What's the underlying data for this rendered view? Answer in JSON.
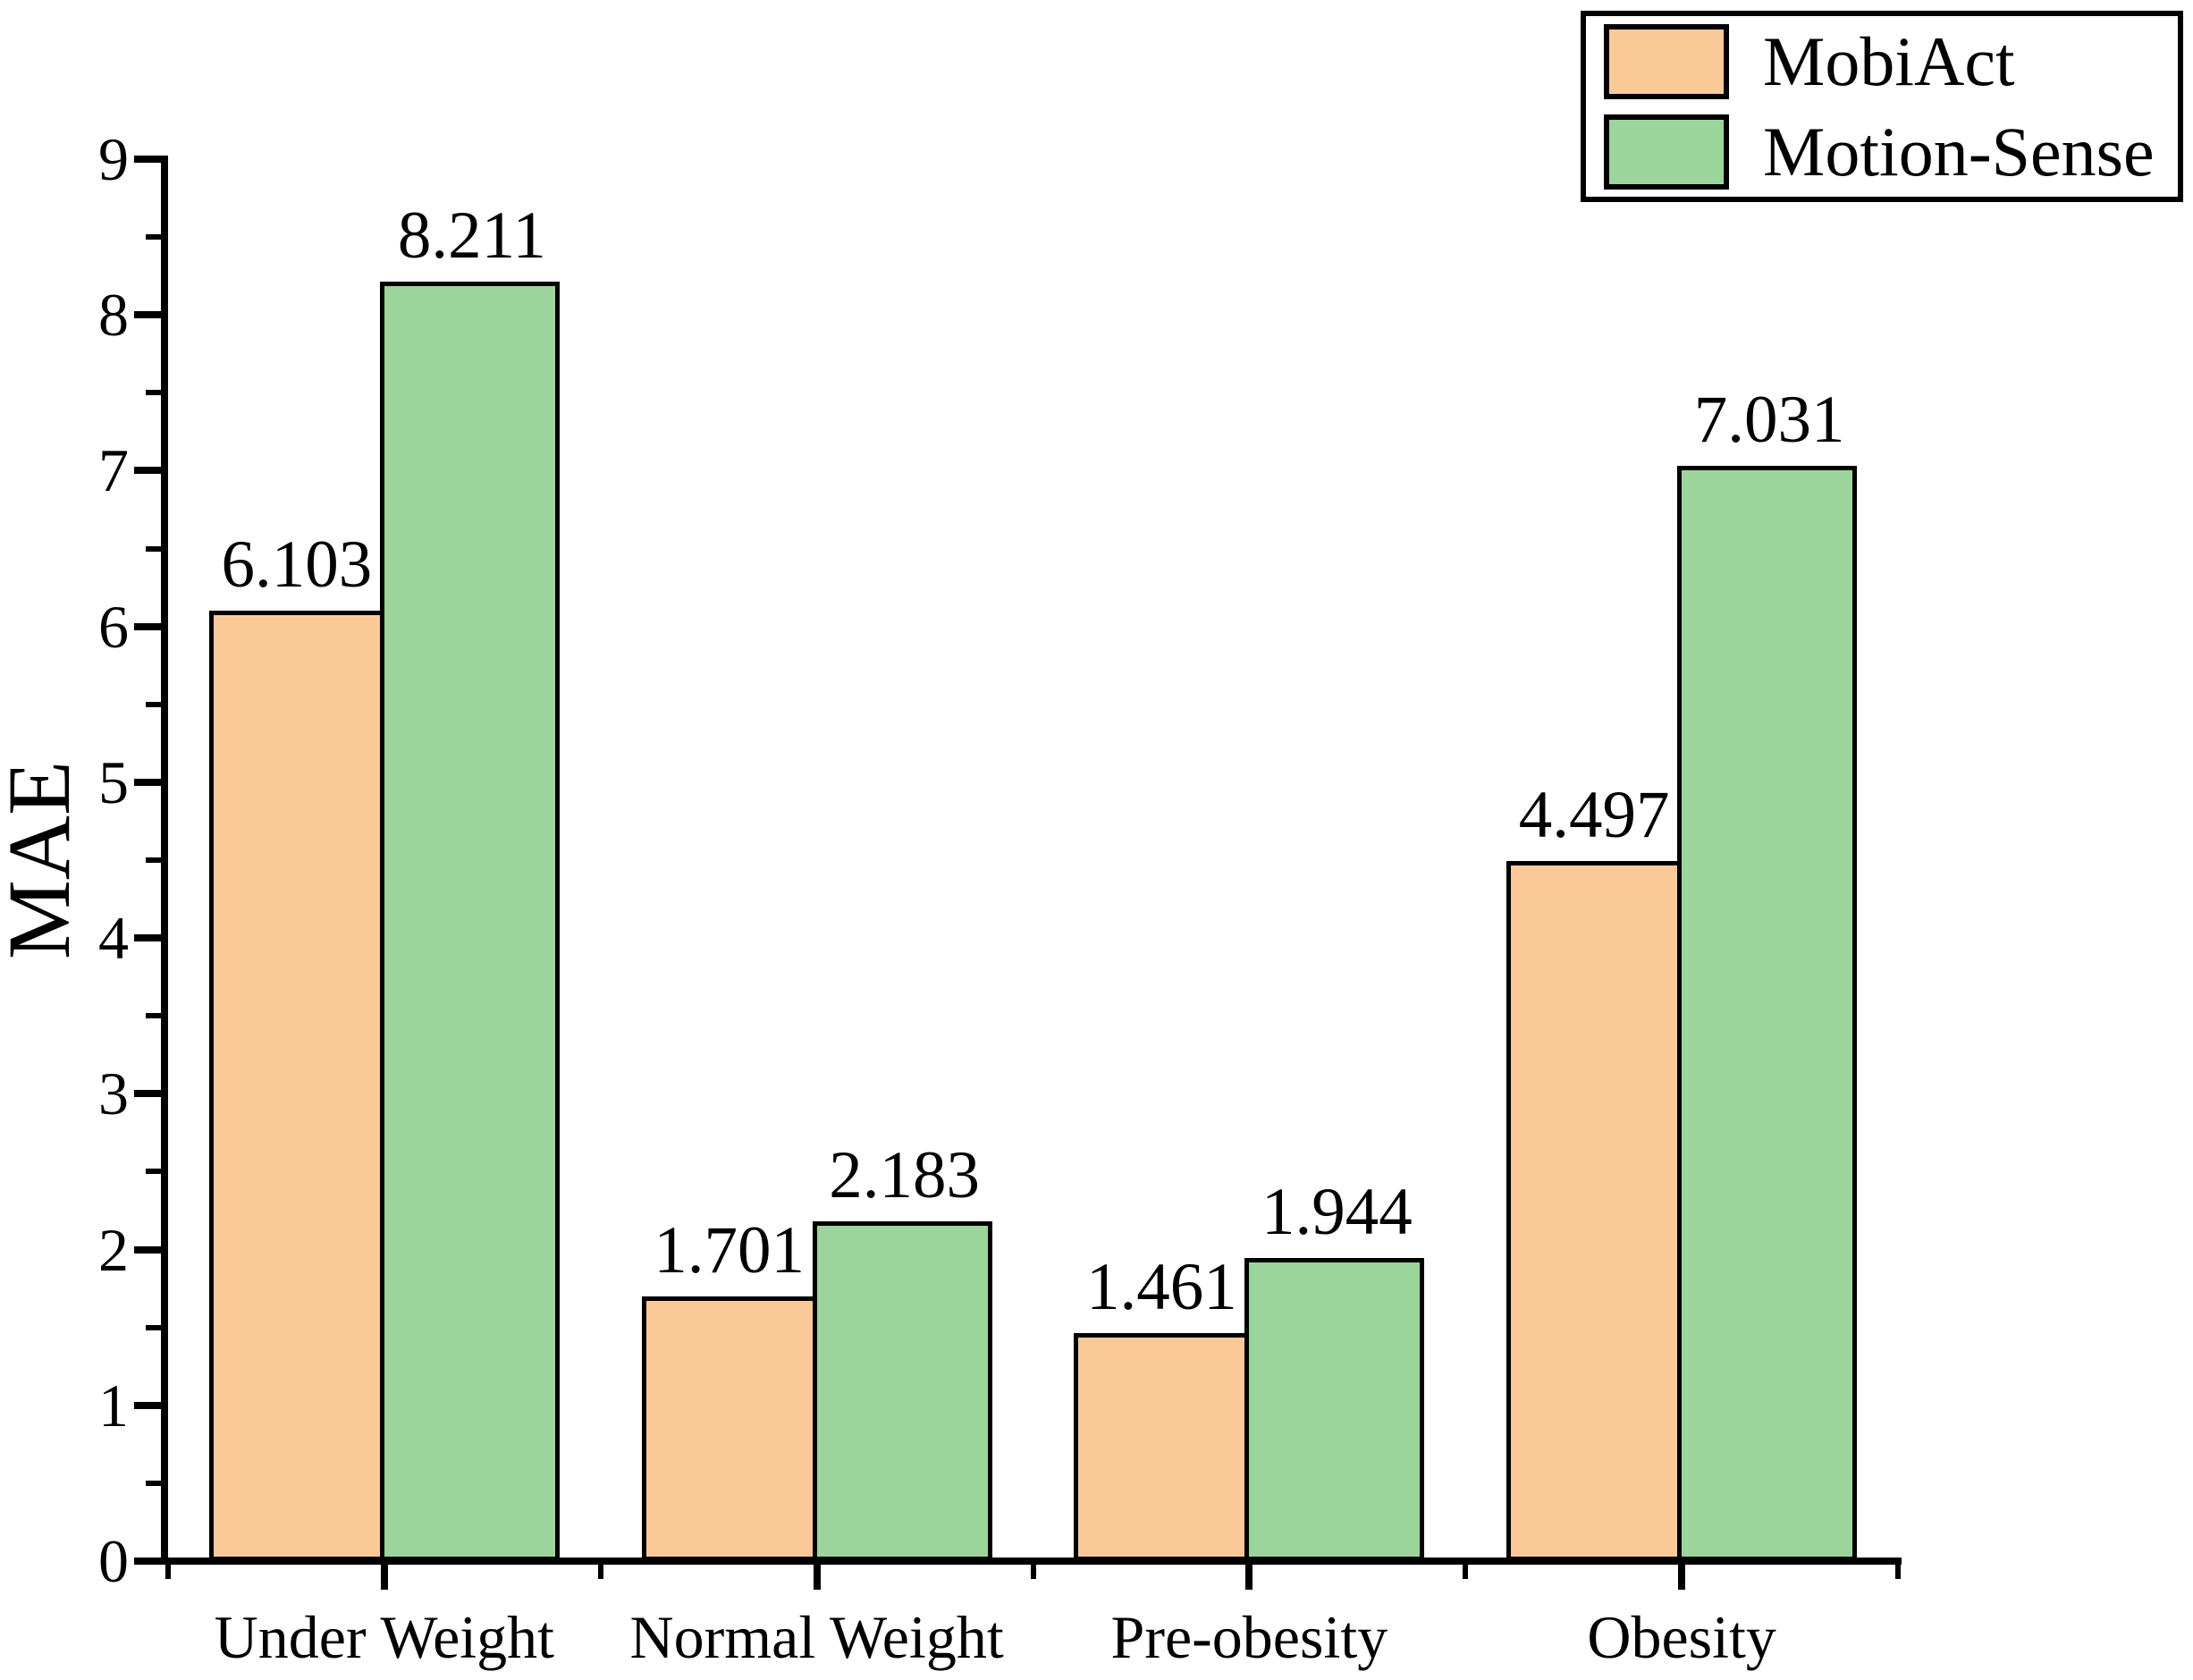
{
  "chart_data": {
    "type": "bar",
    "title": "",
    "xlabel": "",
    "ylabel": "MAE",
    "categories": [
      "Under Weight",
      "Normal Weight",
      "Pre-obesity",
      "Obesity"
    ],
    "series": [
      {
        "name": "MobiAct",
        "color": "#FBC997",
        "values": [
          6.103,
          1.701,
          1.461,
          4.497
        ],
        "labels": [
          "6.103",
          "1.701",
          "1.461",
          "4.497"
        ]
      },
      {
        "name": "Motion-Sense",
        "color": "#9CD59C",
        "values": [
          8.211,
          2.183,
          1.944,
          7.031
        ],
        "labels": [
          "8.211",
          "2.183",
          "1.944",
          "7.031"
        ]
      }
    ],
    "ylim": [
      0,
      9
    ],
    "y_tick_labels": [
      "0",
      "1",
      "2",
      "3",
      "4",
      "5",
      "6",
      "7",
      "8",
      "9"
    ],
    "y_major_step": 1,
    "y_minor_step": 0.5,
    "grid": false,
    "legend_position": "top-right",
    "axis_color": "#000000",
    "bar_border_color": "#000000",
    "value_label_color": "#000000",
    "background_color": "#FFFFFF"
  }
}
